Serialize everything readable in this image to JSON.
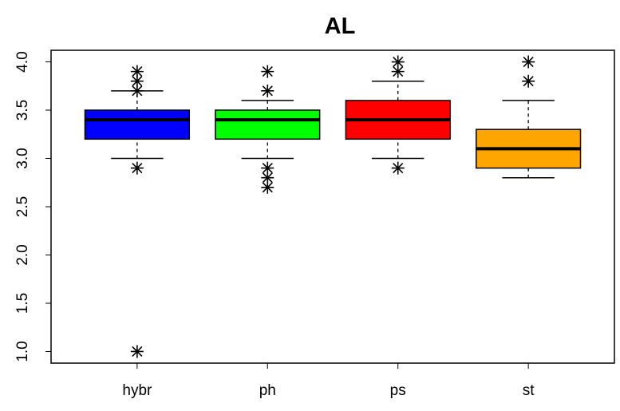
{
  "chart_data": {
    "type": "boxplot",
    "title": "AL",
    "categories": [
      "hybr",
      "ph",
      "ps",
      "st"
    ],
    "colors": [
      "#0000ff",
      "#00ff00",
      "#ff0000",
      "#ffa500"
    ],
    "boxes": [
      {
        "whisker_low": 3.0,
        "q1": 3.2,
        "median": 3.4,
        "q3": 3.5,
        "whisker_high": 3.7,
        "outliers": [
          3.9,
          3.8,
          3.7,
          2.9,
          1.0
        ]
      },
      {
        "whisker_low": 3.0,
        "q1": 3.2,
        "median": 3.4,
        "q3": 3.5,
        "whisker_high": 3.6,
        "outliers": [
          3.9,
          3.7,
          2.9,
          2.8,
          2.7
        ]
      },
      {
        "whisker_low": 3.0,
        "q1": 3.2,
        "median": 3.4,
        "q3": 3.6,
        "whisker_high": 3.8,
        "outliers": [
          4.0,
          3.9,
          2.9
        ]
      },
      {
        "whisker_low": 2.8,
        "q1": 2.9,
        "median": 3.1,
        "q3": 3.3,
        "whisker_high": 3.6,
        "outliers": [
          4.0,
          3.8
        ]
      }
    ],
    "ylim": [
      0.88,
      4.12
    ],
    "yticks": [
      {
        "value": 1,
        "label": "1.0"
      },
      1.5,
      {
        "value": 2,
        "label": "2.0"
      },
      2.5,
      {
        "value": 3,
        "label": "3.0"
      },
      3.5,
      {
        "value": 4,
        "label": "4.0"
      }
    ]
  }
}
